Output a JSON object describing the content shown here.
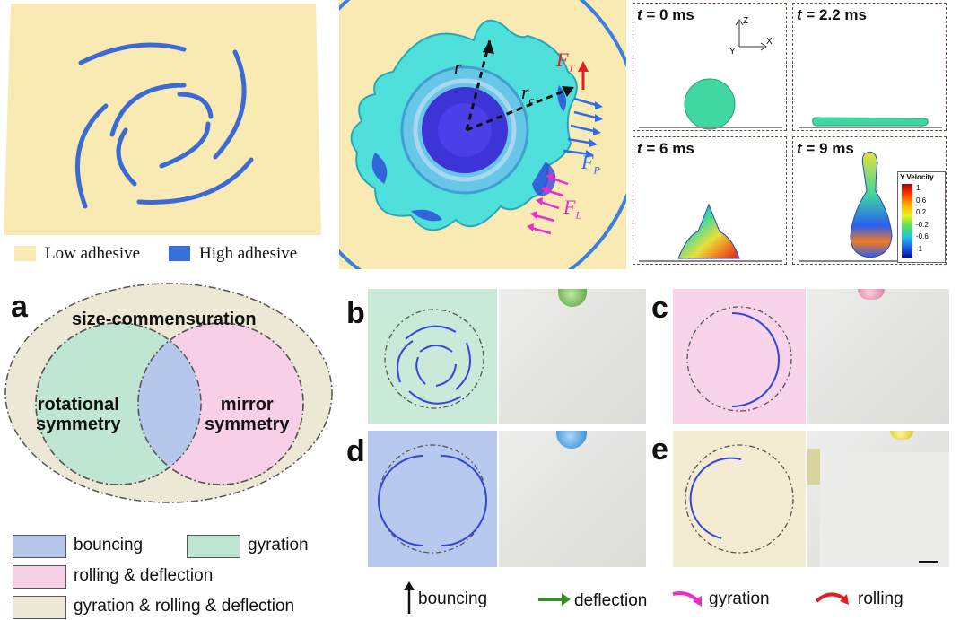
{
  "top_left": {
    "legend": {
      "low": "Low adhesive",
      "high": "High adhesive"
    },
    "colors": {
      "low": "#f8eab2",
      "high": "#3b6fd8",
      "track": "#3a6ad6"
    }
  },
  "top_middle": {
    "labels": {
      "r": "r",
      "rc": "r",
      "rc_sub": "c",
      "ft": "F",
      "ft_sub": "T",
      "fp": "F",
      "fp_sub": "P",
      "fl": "F",
      "fl_sub": "L"
    }
  },
  "top_right": {
    "panels": [
      {
        "t_label": "t",
        "t_value": " = 0 ms"
      },
      {
        "t_label": "t",
        "t_value": " = 2.2 ms"
      },
      {
        "t_label": "t",
        "t_value": " = 6 ms"
      },
      {
        "t_label": "t",
        "t_value": " = 9 ms"
      }
    ],
    "axes": {
      "z": "Z",
      "y": "Y",
      "x": "X"
    },
    "colorbar": {
      "title": "Y Velocity",
      "ticks": [
        "1",
        "0.6",
        "0.2",
        "-0.2",
        "-0.6",
        "-1"
      ]
    }
  },
  "panel_a": {
    "label": "a",
    "outer": "size-commensuration",
    "left_line1": "rotational",
    "left_line2": "symmetry",
    "right_line1": "mirror",
    "right_line2": "symmetry",
    "legend": [
      {
        "text": "bouncing",
        "color": "#b5c8ec"
      },
      {
        "text": "gyration",
        "color": "#bfe6d3"
      },
      {
        "text": "rolling & deflection",
        "color": "#f7cfe6"
      },
      {
        "text": "gyration & rolling & deflection",
        "color": "#ede8d6"
      }
    ]
  },
  "panels": {
    "b": {
      "label": "b",
      "bg": "#c9ead9"
    },
    "c": {
      "label": "c",
      "bg": "#f7d4ea"
    },
    "d": {
      "label": "d",
      "bg": "#b8c9ef"
    },
    "e": {
      "label": "e",
      "bg": "#f3ebd2"
    }
  },
  "bottom_key": {
    "bouncing": "bouncing",
    "deflection": "deflection",
    "gyration": "gyration",
    "rolling": "rolling"
  }
}
